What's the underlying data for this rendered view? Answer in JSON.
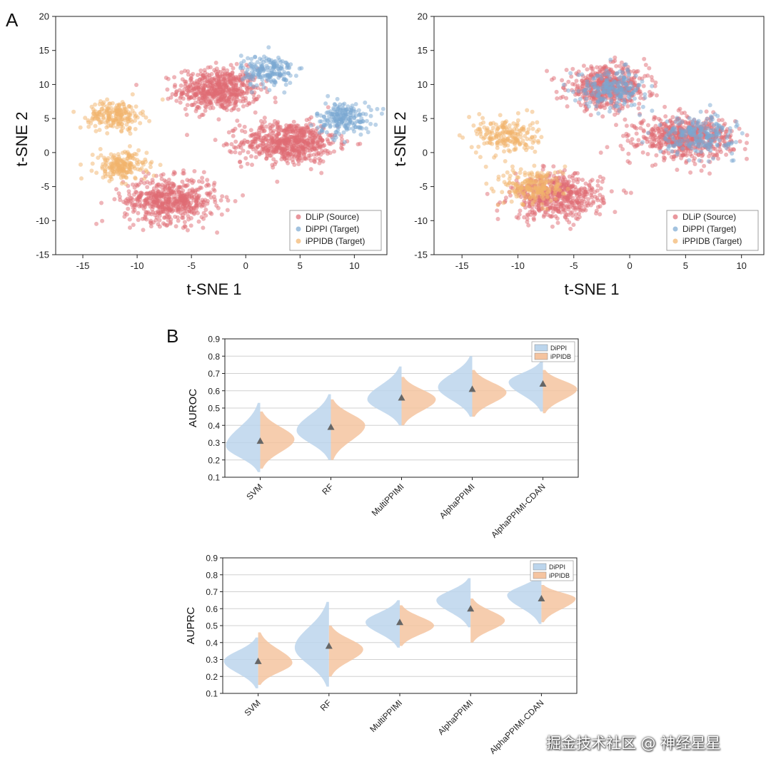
{
  "panels": {
    "a_label": "A",
    "b_label": "B"
  },
  "colors": {
    "dlip": "#e06b73",
    "dippi": "#7aa8d2",
    "ippidb": "#f2b36b",
    "violin_dippi": "#bcd5ec",
    "violin_ippidb": "#f5c4a0",
    "mean_marker": "#666666"
  },
  "watermark": "掘金技术社区 @ 神经星星",
  "chart_data": [
    {
      "id": "tsne_before",
      "type": "scatter",
      "xlabel": "t-SNE 1",
      "ylabel": "t-SNE 2",
      "xlim": [
        -17.5,
        13
      ],
      "ylim": [
        -15,
        20
      ],
      "xticks": [
        -15,
        -10,
        -5,
        0,
        5,
        10
      ],
      "yticks": [
        -15,
        -10,
        -5,
        0,
        5,
        10,
        15,
        20
      ],
      "legend_position": "bottom-right",
      "legend": [
        "DLiP (Source)",
        "DiPPI (Target)",
        "iPPIDB (Target)"
      ],
      "series": [
        {
          "name": "DLiP (Source)",
          "color": "#e06b73",
          "clusters": [
            {
              "cx": -2.5,
              "cy": 9.2,
              "sx": 2.5,
              "sy": 2.1,
              "n": 560
            },
            {
              "cx": 4.0,
              "cy": 1.5,
              "sx": 2.9,
              "sy": 2.0,
              "n": 620
            },
            {
              "cx": -7.0,
              "cy": -7.0,
              "sx": 2.8,
              "sy": 2.2,
              "n": 560
            }
          ]
        },
        {
          "name": "DiPPI (Target)",
          "color": "#7aa8d2",
          "clusters": [
            {
              "cx": 2.0,
              "cy": 12.0,
              "sx": 1.6,
              "sy": 1.6,
              "n": 180
            },
            {
              "cx": 9.0,
              "cy": 5.0,
              "sx": 1.7,
              "sy": 1.6,
              "n": 200
            }
          ]
        },
        {
          "name": "iPPIDB (Target)",
          "color": "#f2b36b",
          "clusters": [
            {
              "cx": -12.0,
              "cy": 5.5,
              "sx": 1.6,
              "sy": 1.4,
              "n": 200
            },
            {
              "cx": -11.5,
              "cy": -2.0,
              "sx": 1.6,
              "sy": 1.4,
              "n": 200
            }
          ]
        }
      ]
    },
    {
      "id": "tsne_after",
      "type": "scatter",
      "xlabel": "t-SNE 1",
      "ylabel": "t-SNE 2",
      "xlim": [
        -17.5,
        12
      ],
      "ylim": [
        -15,
        20
      ],
      "xticks": [
        -15,
        -10,
        -5,
        0,
        5,
        10
      ],
      "yticks": [
        -15,
        -10,
        -5,
        0,
        5,
        10,
        15,
        20
      ],
      "legend_position": "bottom-right",
      "legend": [
        "DLiP (Source)",
        "DiPPI (Target)",
        "iPPIDB (Target)"
      ],
      "series": [
        {
          "name": "DLiP (Source)",
          "color": "#e06b73",
          "clusters": [
            {
              "cx": -2.0,
              "cy": 9.5,
              "sx": 2.4,
              "sy": 2.0,
              "n": 540
            },
            {
              "cx": 5.0,
              "cy": 2.2,
              "sx": 2.8,
              "sy": 2.0,
              "n": 600
            },
            {
              "cx": -6.5,
              "cy": -6.5,
              "sx": 2.7,
              "sy": 2.2,
              "n": 540
            }
          ]
        },
        {
          "name": "DiPPI (Target)",
          "color": "#7aa8d2",
          "clusters": [
            {
              "cx": -1.5,
              "cy": 9.5,
              "sx": 2.0,
              "sy": 1.8,
              "n": 200
            },
            {
              "cx": 6.0,
              "cy": 2.5,
              "sx": 2.2,
              "sy": 1.8,
              "n": 220
            }
          ]
        },
        {
          "name": "iPPIDB (Target)",
          "color": "#f2b36b",
          "clusters": [
            {
              "cx": -11.0,
              "cy": 2.5,
              "sx": 1.8,
              "sy": 1.8,
              "n": 200
            },
            {
              "cx": -8.5,
              "cy": -5.0,
              "sx": 1.8,
              "sy": 1.8,
              "n": 220
            }
          ]
        }
      ]
    },
    {
      "id": "auroc",
      "type": "violin",
      "ylabel": "AUROC",
      "ylim": [
        0.1,
        0.9
      ],
      "yticks": [
        0.1,
        0.2,
        0.3,
        0.4,
        0.5,
        0.6,
        0.7,
        0.8,
        0.9
      ],
      "categories": [
        "SVM",
        "RF",
        "MultiPPIMI",
        "AlphaPPIMI",
        "AlphaPPIMI-CDAN"
      ],
      "legend_position": "top-right",
      "legend": [
        "DiPPI",
        "iPPIDB"
      ],
      "series": [
        {
          "name": "DiPPI",
          "side": "left",
          "color": "#bcd5ec",
          "dist": [
            {
              "mode": 0.28,
              "lo": 0.13,
              "hi": 0.53
            },
            {
              "mode": 0.37,
              "lo": 0.2,
              "hi": 0.58
            },
            {
              "mode": 0.55,
              "lo": 0.4,
              "hi": 0.74
            },
            {
              "mode": 0.62,
              "lo": 0.45,
              "hi": 0.8
            },
            {
              "mode": 0.65,
              "lo": 0.48,
              "hi": 0.77
            }
          ]
        },
        {
          "name": "iPPIDB",
          "side": "right",
          "color": "#f5c4a0",
          "dist": [
            {
              "mode": 0.32,
              "lo": 0.15,
              "hi": 0.48
            },
            {
              "mode": 0.4,
              "lo": 0.2,
              "hi": 0.55
            },
            {
              "mode": 0.55,
              "lo": 0.4,
              "hi": 0.68
            },
            {
              "mode": 0.59,
              "lo": 0.45,
              "hi": 0.72
            },
            {
              "mode": 0.61,
              "lo": 0.47,
              "hi": 0.72
            }
          ]
        }
      ],
      "means": [
        0.31,
        0.39,
        0.56,
        0.61,
        0.64
      ]
    },
    {
      "id": "auprc",
      "type": "violin",
      "ylabel": "AUPRC",
      "ylim": [
        0.1,
        0.9
      ],
      "yticks": [
        0.1,
        0.2,
        0.3,
        0.4,
        0.5,
        0.6,
        0.7,
        0.8,
        0.9
      ],
      "categories": [
        "SVM",
        "RF",
        "MultiPPIMI",
        "AlphaPPIMI",
        "AlphaPPIMI-CDAN"
      ],
      "legend_position": "top-right",
      "legend": [
        "DiPPI",
        "iPPIDB"
      ],
      "series": [
        {
          "name": "DiPPI",
          "side": "left",
          "color": "#bcd5ec",
          "dist": [
            {
              "mode": 0.29,
              "lo": 0.13,
              "hi": 0.43
            },
            {
              "mode": 0.37,
              "lo": 0.14,
              "hi": 0.64
            },
            {
              "mode": 0.52,
              "lo": 0.37,
              "hi": 0.65
            },
            {
              "mode": 0.65,
              "lo": 0.49,
              "hi": 0.78
            },
            {
              "mode": 0.68,
              "lo": 0.51,
              "hi": 0.8
            }
          ]
        },
        {
          "name": "iPPIDB",
          "side": "right",
          "color": "#f5c4a0",
          "dist": [
            {
              "mode": 0.28,
              "lo": 0.15,
              "hi": 0.46
            },
            {
              "mode": 0.36,
              "lo": 0.2,
              "hi": 0.5
            },
            {
              "mode": 0.5,
              "lo": 0.38,
              "hi": 0.62
            },
            {
              "mode": 0.53,
              "lo": 0.4,
              "hi": 0.66
            },
            {
              "mode": 0.66,
              "lo": 0.52,
              "hi": 0.74
            }
          ]
        }
      ],
      "means": [
        0.29,
        0.38,
        0.52,
        0.6,
        0.66
      ]
    }
  ]
}
